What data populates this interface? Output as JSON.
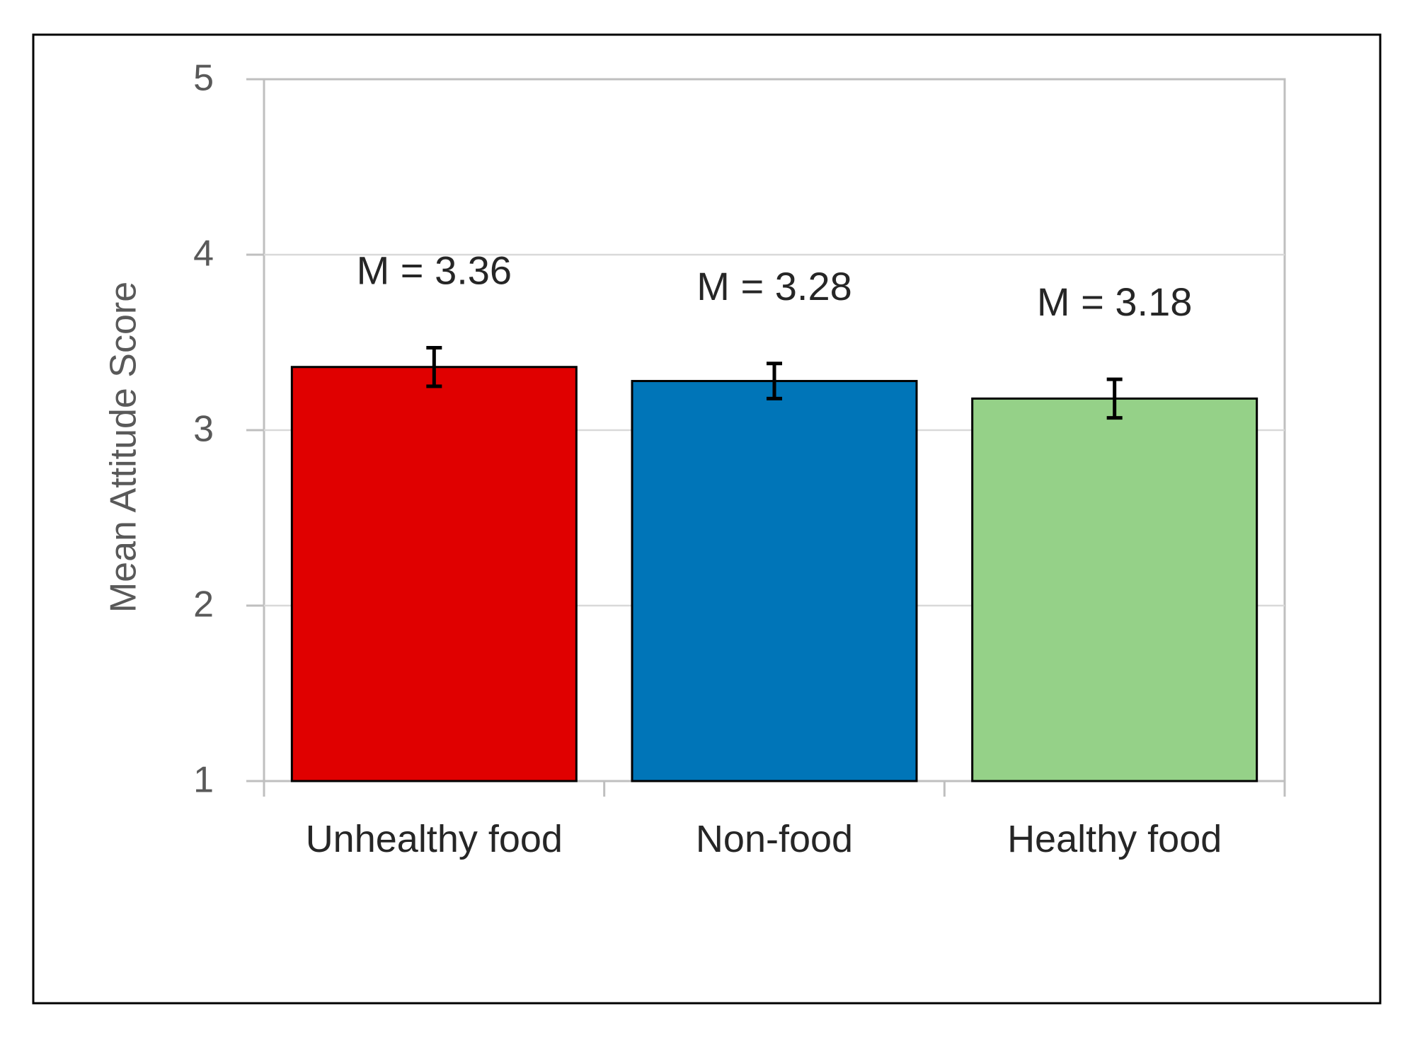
{
  "chart_data": {
    "type": "bar",
    "categories": [
      "Unhealthy food",
      "Non-food",
      "Healthy food"
    ],
    "values": [
      3.36,
      3.28,
      3.18
    ],
    "error": [
      0.11,
      0.1,
      0.11
    ],
    "data_labels": [
      "M = 3.36",
      "M = 3.28",
      "M = 3.18"
    ],
    "title": "",
    "xlabel": "",
    "ylabel": "Mean Attitude Score",
    "ylim": [
      1,
      5
    ],
    "yticks": [
      "1",
      "2",
      "3",
      "4",
      "5"
    ],
    "ytick_values": [
      1,
      2,
      3,
      4,
      5
    ],
    "grid": true,
    "legend": "none",
    "colors": [
      "#e00000",
      "#0075b8",
      "#95d188"
    ]
  }
}
